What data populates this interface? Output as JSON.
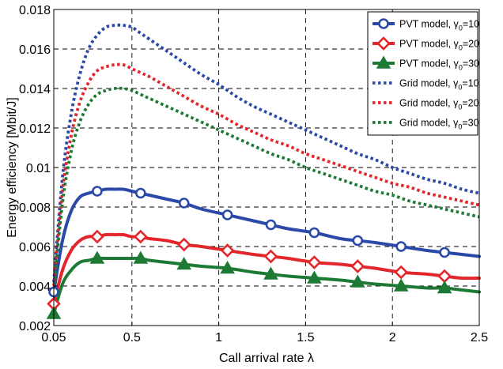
{
  "chart_data": {
    "type": "line",
    "title": "",
    "xlabel": "Call arrival rate λ",
    "ylabel": "Energy efficiency [Mbit/J]",
    "xlim": [
      0.05,
      2.5
    ],
    "ylim": [
      0.002,
      0.018
    ],
    "x_ticks": [
      0.05,
      0.5,
      1,
      1.5,
      2,
      2.5
    ],
    "x_tick_labels": [
      "0.05",
      "0.5",
      "1",
      "1.5",
      "2",
      "2.5"
    ],
    "y_ticks": [
      0.002,
      0.004,
      0.006,
      0.008,
      0.01,
      0.012,
      0.014,
      0.016,
      0.018
    ],
    "y_tick_labels": [
      "0.002",
      "0.004",
      "0.006",
      "0.008",
      "0.01",
      "0.012",
      "0.014",
      "0.016",
      "0.018"
    ],
    "grid": true,
    "grid_style": "dashed",
    "legend_position": "top-right",
    "series": [
      {
        "name": "PVT model, γ₀=10",
        "legend": {
          "main": "PVT model, γ",
          "sub": "0",
          "tail": "=10"
        },
        "color": "#2a49a8",
        "style": "solid",
        "marker": "circle",
        "x": [
          0.05,
          0.1,
          0.15,
          0.2,
          0.25,
          0.3,
          0.35,
          0.4,
          0.45,
          0.5,
          0.55,
          0.6,
          0.7,
          0.8,
          0.9,
          1.05,
          1.2,
          1.3,
          1.4,
          1.55,
          1.7,
          1.8,
          1.9,
          2.05,
          2.2,
          2.3,
          2.4,
          2.5
        ],
        "y": [
          0.0037,
          0.0063,
          0.0078,
          0.0085,
          0.0087,
          0.0088,
          0.0089,
          0.0089,
          0.0089,
          0.0088,
          0.0087,
          0.0086,
          0.0084,
          0.0082,
          0.0079,
          0.0076,
          0.0073,
          0.0071,
          0.0069,
          0.0067,
          0.0064,
          0.0063,
          0.0062,
          0.006,
          0.0058,
          0.0057,
          0.0056,
          0.0055
        ],
        "marker_x": [
          0.05,
          0.3,
          0.55,
          0.8,
          1.05,
          1.3,
          1.55,
          1.8,
          2.05,
          2.3
        ],
        "marker_y": [
          0.0037,
          0.0088,
          0.0087,
          0.0082,
          0.0076,
          0.0071,
          0.0067,
          0.0063,
          0.006,
          0.0057
        ]
      },
      {
        "name": "PVT model, γ₀=20",
        "legend": {
          "main": "PVT model, γ",
          "sub": "0",
          "tail": "=20"
        },
        "color": "#e3262b",
        "style": "solid",
        "marker": "diamond",
        "x": [
          0.05,
          0.1,
          0.15,
          0.2,
          0.25,
          0.3,
          0.35,
          0.4,
          0.45,
          0.5,
          0.55,
          0.6,
          0.7,
          0.8,
          0.9,
          1.05,
          1.2,
          1.3,
          1.4,
          1.55,
          1.7,
          1.8,
          1.9,
          2.05,
          2.2,
          2.3,
          2.4,
          2.5
        ],
        "y": [
          0.0031,
          0.0048,
          0.0058,
          0.0063,
          0.0065,
          0.0065,
          0.0066,
          0.0066,
          0.0066,
          0.0065,
          0.0065,
          0.0064,
          0.0063,
          0.0061,
          0.006,
          0.0058,
          0.0056,
          0.0055,
          0.0054,
          0.0052,
          0.0051,
          0.005,
          0.0049,
          0.0047,
          0.0046,
          0.0045,
          0.0044,
          0.0044
        ],
        "marker_x": [
          0.05,
          0.3,
          0.55,
          0.8,
          1.05,
          1.3,
          1.55,
          1.8,
          2.05,
          2.3
        ],
        "marker_y": [
          0.0031,
          0.0065,
          0.0065,
          0.0061,
          0.0058,
          0.0055,
          0.0052,
          0.005,
          0.0047,
          0.0045
        ]
      },
      {
        "name": "PVT model, γ₀=30",
        "legend": {
          "main": "PVT model, γ",
          "sub": "0",
          "tail": "=30"
        },
        "color": "#1d7a35",
        "style": "solid",
        "marker": "triangle",
        "x": [
          0.05,
          0.1,
          0.15,
          0.2,
          0.25,
          0.3,
          0.35,
          0.4,
          0.45,
          0.5,
          0.55,
          0.6,
          0.7,
          0.8,
          0.9,
          1.05,
          1.2,
          1.3,
          1.4,
          1.55,
          1.7,
          1.8,
          1.9,
          2.05,
          2.2,
          2.3,
          2.4,
          2.5
        ],
        "y": [
          0.0026,
          0.0041,
          0.0048,
          0.0052,
          0.0053,
          0.0054,
          0.0054,
          0.0054,
          0.0054,
          0.0054,
          0.0054,
          0.0053,
          0.0052,
          0.0051,
          0.005,
          0.0049,
          0.0047,
          0.0046,
          0.0045,
          0.0044,
          0.0043,
          0.0042,
          0.0041,
          0.004,
          0.0039,
          0.0039,
          0.0038,
          0.0037
        ],
        "marker_x": [
          0.05,
          0.3,
          0.55,
          0.8,
          1.05,
          1.3,
          1.55,
          1.8,
          2.05,
          2.3
        ],
        "marker_y": [
          0.0026,
          0.0054,
          0.0054,
          0.0051,
          0.0049,
          0.0046,
          0.0044,
          0.0042,
          0.004,
          0.0039
        ]
      },
      {
        "name": "Grid model, γ₀=10",
        "legend": {
          "main": "Grid model, γ",
          "sub": "0",
          "tail": "=10"
        },
        "color": "#2a49a8",
        "style": "dotted",
        "marker": "none",
        "x": [
          0.05,
          0.1,
          0.15,
          0.2,
          0.25,
          0.3,
          0.35,
          0.4,
          0.45,
          0.5,
          0.55,
          0.6,
          0.7,
          0.8,
          0.9,
          1.0,
          1.1,
          1.2,
          1.3,
          1.4,
          1.5,
          1.6,
          1.7,
          1.8,
          1.9,
          2.0,
          2.1,
          2.2,
          2.3,
          2.4,
          2.5
        ],
        "y": [
          0.0042,
          0.0095,
          0.0127,
          0.0147,
          0.016,
          0.0167,
          0.0171,
          0.0172,
          0.0172,
          0.0171,
          0.0168,
          0.0165,
          0.0159,
          0.0153,
          0.0147,
          0.0142,
          0.0136,
          0.0131,
          0.0127,
          0.0123,
          0.0119,
          0.0115,
          0.0111,
          0.0107,
          0.0104,
          0.01,
          0.0097,
          0.0094,
          0.0092,
          0.0089,
          0.0087
        ]
      },
      {
        "name": "Grid model, γ₀=20",
        "legend": {
          "main": "Grid model, γ",
          "sub": "0",
          "tail": "=20"
        },
        "color": "#e3262b",
        "style": "dotted",
        "marker": "none",
        "x": [
          0.05,
          0.1,
          0.15,
          0.2,
          0.25,
          0.3,
          0.35,
          0.4,
          0.45,
          0.5,
          0.55,
          0.6,
          0.7,
          0.8,
          0.9,
          1.0,
          1.1,
          1.2,
          1.3,
          1.4,
          1.5,
          1.6,
          1.7,
          1.8,
          1.9,
          2.0,
          2.1,
          2.2,
          2.3,
          2.4,
          2.5
        ],
        "y": [
          0.004,
          0.0088,
          0.0116,
          0.0133,
          0.0143,
          0.0149,
          0.0151,
          0.0152,
          0.0152,
          0.015,
          0.0148,
          0.0146,
          0.0141,
          0.0136,
          0.0131,
          0.0127,
          0.0122,
          0.0118,
          0.0114,
          0.0111,
          0.0107,
          0.0104,
          0.0101,
          0.0098,
          0.0095,
          0.0092,
          0.009,
          0.0087,
          0.0085,
          0.0083,
          0.0081
        ]
      },
      {
        "name": "Grid model, γ₀=30",
        "legend": {
          "main": "Grid model, γ",
          "sub": "0",
          "tail": "=30"
        },
        "color": "#1d7a35",
        "style": "dotted",
        "marker": "none",
        "x": [
          0.05,
          0.1,
          0.15,
          0.2,
          0.25,
          0.3,
          0.35,
          0.4,
          0.45,
          0.5,
          0.55,
          0.6,
          0.7,
          0.8,
          0.9,
          1.0,
          1.1,
          1.2,
          1.3,
          1.4,
          1.5,
          1.6,
          1.7,
          1.8,
          1.9,
          2.0,
          2.1,
          2.2,
          2.3,
          2.4,
          2.5
        ],
        "y": [
          0.0038,
          0.0082,
          0.0108,
          0.0123,
          0.0132,
          0.0137,
          0.0139,
          0.014,
          0.014,
          0.0139,
          0.0137,
          0.0135,
          0.0131,
          0.0127,
          0.0123,
          0.0119,
          0.0115,
          0.0111,
          0.0107,
          0.0104,
          0.01,
          0.0097,
          0.0094,
          0.0091,
          0.0088,
          0.0086,
          0.0083,
          0.0081,
          0.0079,
          0.0077,
          0.0075
        ]
      }
    ]
  }
}
